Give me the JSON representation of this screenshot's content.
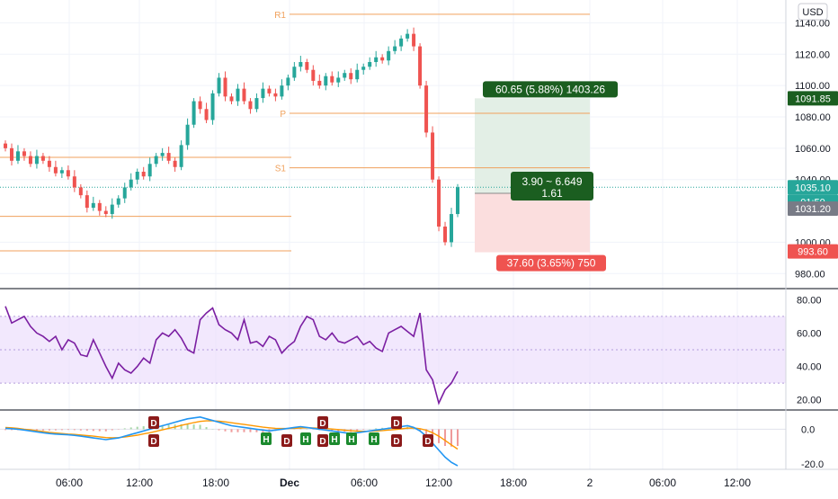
{
  "currency_button": "USD",
  "colors": {
    "up": "#26a69a",
    "down": "#ef5350",
    "level": "#f0a15c",
    "rsi": "#7b1fa2",
    "rsi_band": "#e9d8fb",
    "macd": "#2196f3",
    "signal": "#ff9800",
    "profit_label": "#1b5e20",
    "profit_zone": "#e3efe6",
    "loss_zone": "#fbdede",
    "loss_label": "#ef5350",
    "price_tag": "#26a69a",
    "last_close_tag": "#787b86"
  },
  "chart_data": [
    {
      "type": "candlestick",
      "pane": "price",
      "y_ticks": [
        "1140.00",
        "1120.00",
        "1100.00",
        "1080.00",
        "1060.00",
        "1040.00",
        "1000.00",
        "980.00"
      ],
      "ylim": [
        975,
        1150
      ],
      "close": [
        1060,
        1052,
        1058,
        1055,
        1050,
        1055,
        1052,
        1048,
        1044,
        1046,
        1042,
        1035,
        1030,
        1022,
        1025,
        1020,
        1018,
        1024,
        1028,
        1035,
        1040,
        1045,
        1042,
        1050,
        1055,
        1057,
        1052,
        1048,
        1062,
        1075,
        1090,
        1085,
        1078,
        1095,
        1105,
        1093,
        1090,
        1098,
        1090,
        1085,
        1092,
        1098,
        1095,
        1093,
        1100,
        1105,
        1112,
        1115,
        1110,
        1103,
        1100,
        1106,
        1102,
        1105,
        1108,
        1104,
        1110,
        1112,
        1115,
        1118,
        1116,
        1122,
        1125,
        1130,
        1133,
        1125,
        1100,
        1070,
        1040,
        1010,
        1000,
        1018,
        1035.1
      ],
      "levels": [
        {
          "label": "R1",
          "value": 1145.5
        },
        {
          "label": "P",
          "value": 1082.3
        },
        {
          "label": "S1",
          "value": 1047.5
        },
        {
          "label": "",
          "value": 1054.2
        },
        {
          "label": "",
          "value": 1016.5
        },
        {
          "label": "",
          "value": 994.5
        }
      ],
      "position": {
        "profit_label": "60.65 (5.88%) 1403.26",
        "center_label_line1": "3.90 ~ 6.649",
        "center_label_line2": "1.61",
        "loss_label": "37.60 (3.65%) 750",
        "target": 1091.85,
        "entry": 1031.2,
        "stop": 993.6
      },
      "price_tags": {
        "target": "1091.85",
        "current": "1035.10",
        "countdown": "01:50",
        "last_close": "1031.20",
        "stop": "993.60"
      }
    },
    {
      "type": "line",
      "pane": "rsi",
      "y_ticks": [
        "80.00",
        "60.00",
        "40.00",
        "20.00"
      ],
      "ylim": [
        15,
        85
      ],
      "band": [
        30,
        70
      ],
      "midline": 50,
      "values": [
        76,
        66,
        68,
        70,
        64,
        60,
        58,
        55,
        58,
        50,
        56,
        54,
        47,
        46,
        56,
        48,
        40,
        33,
        42,
        38,
        36,
        40,
        45,
        42,
        56,
        60,
        58,
        62,
        57,
        50,
        48,
        68,
        72,
        75,
        65,
        62,
        60,
        56,
        68,
        54,
        55,
        52,
        58,
        56,
        48,
        52,
        55,
        64,
        70,
        68,
        58,
        56,
        60,
        55,
        54,
        56,
        58,
        53,
        55,
        51,
        49,
        60,
        62,
        64,
        61,
        58,
        72,
        38,
        32,
        18,
        26,
        30,
        37
      ]
    },
    {
      "type": "bar+line",
      "pane": "macd",
      "y_ticks": [
        "0.0",
        "-20.0"
      ],
      "ylim": [
        -22,
        10
      ],
      "macd": [
        0.5,
        0.3,
        0,
        -0.5,
        -1,
        -1.5,
        -2,
        -2.5,
        -2.8,
        -3,
        -3.2,
        -3.5,
        -4,
        -4.5,
        -5,
        -5.5,
        -6,
        -5.5,
        -5,
        -4,
        -3,
        -2,
        -1,
        0,
        1,
        2,
        3,
        4,
        5,
        6,
        6.5,
        7,
        6,
        5,
        4,
        3,
        2,
        1.5,
        1,
        0.5,
        0,
        -0.5,
        -1,
        -0.5,
        0,
        0.5,
        1,
        1.5,
        1,
        0.5,
        0,
        -0.5,
        -1,
        -1.5,
        -2,
        -2.5,
        -2,
        -1.5,
        -1,
        -0.5,
        0,
        0.5,
        1,
        1.5,
        2,
        1,
        -1,
        -4,
        -8,
        -12,
        -16,
        -19,
        -21
      ],
      "signal": [
        1,
        0.8,
        0.5,
        0,
        -0.4,
        -0.9,
        -1.3,
        -1.8,
        -2.2,
        -2.5,
        -2.8,
        -3,
        -3.3,
        -3.7,
        -4,
        -4.4,
        -4.8,
        -4.9,
        -4.8,
        -4.5,
        -4,
        -3.4,
        -2.7,
        -2,
        -1.2,
        -0.4,
        0.5,
        1.3,
        2.2,
        3,
        3.8,
        4.5,
        4.8,
        4.8,
        4.6,
        4.2,
        3.7,
        3.2,
        2.7,
        2.2,
        1.7,
        1.2,
        0.8,
        0.5,
        0.4,
        0.4,
        0.5,
        0.7,
        0.8,
        0.7,
        0.6,
        0.4,
        0.1,
        -0.2,
        -0.6,
        -0.9,
        -1.1,
        -1.2,
        -1.2,
        -1,
        -0.8,
        -0.5,
        -0.2,
        0.2,
        0.6,
        0.7,
        0.3,
        -0.6,
        -2,
        -4,
        -6.4,
        -9,
        -11.4
      ],
      "markers": [
        {
          "text": "D",
          "bar": 28,
          "kind": "down"
        },
        {
          "text": "D",
          "bar": 28,
          "kind": "down-low"
        },
        {
          "text": "H",
          "bar": 49,
          "kind": "up"
        },
        {
          "text": "D",
          "bar": 53,
          "kind": "down-low"
        },
        {
          "text": "H",
          "bar": 57,
          "kind": "up"
        },
        {
          "text": "D",
          "bar": 59,
          "kind": "down"
        },
        {
          "text": "D",
          "bar": 60,
          "kind": "down-low"
        },
        {
          "text": "H",
          "bar": 65,
          "kind": "up"
        },
        {
          "text": "H",
          "bar": 69,
          "kind": "up"
        },
        {
          "text": "D",
          "bar": 73,
          "kind": "down"
        },
        {
          "text": "D",
          "bar": 73,
          "kind": "down-low"
        },
        {
          "text": "H",
          "bar": 72,
          "kind": "up"
        },
        {
          "text": "D",
          "bar": 79,
          "kind": "down-low"
        }
      ]
    }
  ],
  "x_axis": {
    "ticks": [
      "06:00",
      "12:00",
      "18:00",
      "Dec",
      "06:00",
      "12:00",
      "18:00",
      "2",
      "06:00",
      "12:00"
    ]
  }
}
